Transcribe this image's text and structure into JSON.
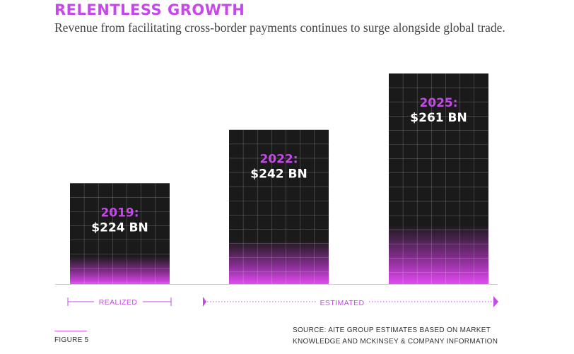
{
  "header": {
    "title": "RELENTLESS GROWTH",
    "subtitle": "Revenue from facilitating cross-border payments continues to surge alongside global trade."
  },
  "chart_data": {
    "type": "bar",
    "categories": [
      "2019:",
      "2022:",
      "2025:"
    ],
    "values": [
      224,
      242,
      261
    ],
    "value_labels": [
      "$224 BN",
      "$242 BN",
      "$261 BN"
    ],
    "unit": "BN",
    "ylim": [
      190,
      270
    ],
    "grid": true,
    "segments": [
      {
        "label": "REALIZED",
        "categories": [
          "2019:"
        ]
      },
      {
        "label": "ESTIMATED",
        "categories": [
          "2022:",
          "2025:"
        ]
      }
    ]
  },
  "footer": {
    "figure": "FIGURE 5",
    "source": "SOURCE: AITE GROUP ESTIMATES BASED ON MARKET KNOWLEDGE AND MCKINSEY & COMPANY INFORMATION"
  },
  "colors": {
    "accent": "#c548e8",
    "bar": "#1a1a1a",
    "glow": "#d63ce8",
    "baseline": "#cccccc"
  }
}
